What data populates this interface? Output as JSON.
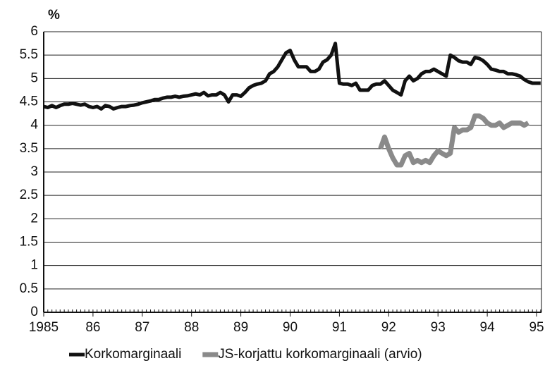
{
  "chart_data": {
    "type": "line",
    "y_label": "%",
    "x": [
      1985,
      1985.083,
      1985.167,
      1985.25,
      1985.333,
      1985.417,
      1985.5,
      1985.583,
      1985.667,
      1985.75,
      1985.833,
      1985.917,
      1986,
      1986.083,
      1986.167,
      1986.25,
      1986.333,
      1986.417,
      1986.5,
      1986.583,
      1986.667,
      1986.75,
      1986.833,
      1986.917,
      1987,
      1987.083,
      1987.167,
      1987.25,
      1987.333,
      1987.417,
      1987.5,
      1987.583,
      1987.667,
      1987.75,
      1987.833,
      1987.917,
      1988,
      1988.083,
      1988.167,
      1988.25,
      1988.333,
      1988.417,
      1988.5,
      1988.583,
      1988.667,
      1988.75,
      1988.833,
      1988.917,
      1989,
      1989.083,
      1989.167,
      1989.25,
      1989.333,
      1989.417,
      1989.5,
      1989.583,
      1989.667,
      1989.75,
      1989.833,
      1989.917,
      1990,
      1990.083,
      1990.167,
      1990.25,
      1990.333,
      1990.417,
      1990.5,
      1990.583,
      1990.667,
      1990.75,
      1990.833,
      1990.917,
      1991,
      1991.083,
      1991.167,
      1991.25,
      1991.333,
      1991.417,
      1991.5,
      1991.583,
      1991.667,
      1991.75,
      1991.833,
      1991.917,
      1992,
      1992.083,
      1992.167,
      1992.25,
      1992.333,
      1992.417,
      1992.5,
      1992.583,
      1992.667,
      1992.75,
      1992.833,
      1992.917,
      1993,
      1993.083,
      1993.167,
      1993.25,
      1993.333,
      1993.417,
      1993.5,
      1993.583,
      1993.667,
      1993.75,
      1993.833,
      1993.917,
      1994,
      1994.083,
      1994.167,
      1994.25,
      1994.333,
      1994.417,
      1994.5,
      1994.583,
      1994.667,
      1994.75,
      1994.833,
      1994.917,
      1995,
      1995.083
    ],
    "series": [
      {
        "name": "Korkomarginaali",
        "color": "#111111",
        "width": 5,
        "values": [
          4.4,
          4.38,
          4.42,
          4.38,
          4.42,
          4.45,
          4.45,
          4.47,
          4.45,
          4.43,
          4.45,
          4.4,
          4.38,
          4.4,
          4.35,
          4.42,
          4.4,
          4.35,
          4.38,
          4.4,
          4.4,
          4.42,
          4.43,
          4.45,
          4.48,
          4.5,
          4.52,
          4.55,
          4.55,
          4.58,
          4.6,
          4.6,
          4.62,
          4.6,
          4.62,
          4.63,
          4.65,
          4.67,
          4.65,
          4.7,
          4.63,
          4.65,
          4.65,
          4.7,
          4.65,
          4.5,
          4.65,
          4.65,
          4.62,
          4.7,
          4.8,
          4.85,
          4.88,
          4.9,
          4.95,
          5.1,
          5.15,
          5.25,
          5.4,
          5.55,
          5.6,
          5.4,
          5.25,
          5.25,
          5.25,
          5.15,
          5.15,
          5.2,
          5.35,
          5.4,
          5.5,
          5.75,
          4.9,
          4.88,
          4.88,
          4.85,
          4.9,
          4.75,
          4.75,
          4.75,
          4.85,
          4.88,
          4.88,
          4.95,
          4.85,
          4.75,
          4.7,
          4.65,
          4.95,
          5.05,
          4.95,
          5.0,
          5.1,
          5.15,
          5.15,
          5.2,
          5.15,
          5.1,
          5.05,
          5.5,
          5.45,
          5.38,
          5.35,
          5.35,
          5.3,
          5.45,
          5.43,
          5.38,
          5.3,
          5.2,
          5.18,
          5.15,
          5.15,
          5.1,
          5.1,
          5.08,
          5.05,
          4.98,
          4.93,
          4.9,
          4.9,
          4.9
        ]
      },
      {
        "name": "JS-korjattu korkomarginaali (arvio)",
        "color": "#8a8a8a",
        "width": 7,
        "values": [
          null,
          null,
          null,
          null,
          null,
          null,
          null,
          null,
          null,
          null,
          null,
          null,
          null,
          null,
          null,
          null,
          null,
          null,
          null,
          null,
          null,
          null,
          null,
          null,
          null,
          null,
          null,
          null,
          null,
          null,
          null,
          null,
          null,
          null,
          null,
          null,
          null,
          null,
          null,
          null,
          null,
          null,
          null,
          null,
          null,
          null,
          null,
          null,
          null,
          null,
          null,
          null,
          null,
          null,
          null,
          null,
          null,
          null,
          null,
          null,
          null,
          null,
          null,
          null,
          null,
          null,
          null,
          null,
          null,
          null,
          null,
          null,
          null,
          null,
          null,
          null,
          null,
          null,
          null,
          null,
          null,
          null,
          3.5,
          3.75,
          3.5,
          3.3,
          3.15,
          3.15,
          3.35,
          3.4,
          3.2,
          3.25,
          3.2,
          3.25,
          3.2,
          3.35,
          3.45,
          3.4,
          3.35,
          3.4,
          3.95,
          3.85,
          3.9,
          3.9,
          3.95,
          4.2,
          4.2,
          4.15,
          4.05,
          4.0,
          4.0,
          4.05,
          3.95,
          4.0,
          4.05,
          4.05,
          4.05,
          4.0,
          4.05,
          null,
          null,
          null
        ]
      }
    ],
    "xlim": [
      1985,
      1995.1
    ],
    "xticks": [
      1985,
      {
        "value": 1986,
        "label": "86"
      },
      {
        "value": 1987,
        "label": "87"
      },
      {
        "value": 1988,
        "label": "88"
      },
      {
        "value": 1989,
        "label": "89"
      },
      {
        "value": 1990,
        "label": "90"
      },
      {
        "value": 1991,
        "label": "91"
      },
      {
        "value": 1992,
        "label": "92"
      },
      {
        "value": 1993,
        "label": "93"
      },
      {
        "value": 1994,
        "label": "94"
      },
      {
        "value": 1995,
        "label": "95"
      }
    ],
    "ylim": [
      0,
      6
    ],
    "yticks": [
      0,
      0.5,
      1,
      1.5,
      2,
      2.5,
      3,
      3.5,
      4,
      4.5,
      5,
      5.5,
      6
    ],
    "grid": true,
    "legend": "bottom"
  }
}
